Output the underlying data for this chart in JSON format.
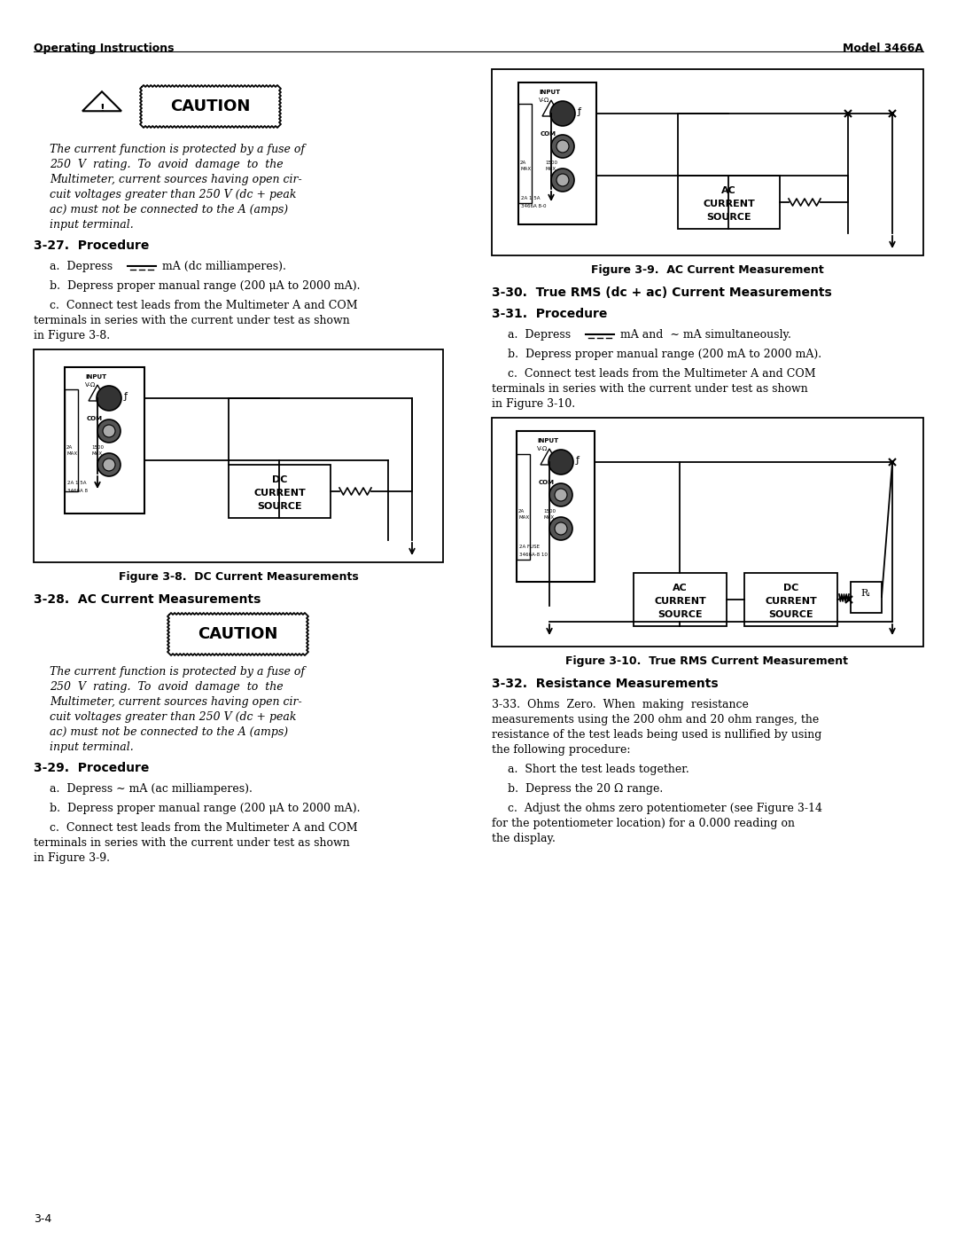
{
  "page_header_left": "Operating Instructions",
  "page_header_right": "Model 3466A",
  "page_footer": "3-4",
  "bg_color": "#ffffff",
  "caution_text_lines": [
    "The current function is protected by a fuse of",
    "250  V  rating.  To  avoid  damage  to  the",
    "Multimeter, current sources having open cir-",
    "cuit voltages greater than 250 V (dc + peak",
    "ac) must not be connected to the A (amps)",
    "input terminal."
  ],
  "section_327_title": "3-27.  Procedure",
  "step_a1_pre": "a.  Depress  ",
  "step_a1_post": " mA (dc milliamperes).",
  "step_b1": "b.  Depress proper manual range (200 μA to 2000 mA).",
  "step_c1_lines": [
    "c.  Connect test leads from the Multimeter A and COM",
    "terminals in series with the current under test as shown",
    "in Figure 3-8."
  ],
  "fig38_caption": "Figure 3-8.  DC Current Measurements",
  "section_328_title": "3-28.  AC Current Measurements",
  "section_329_title": "3-29.  Procedure",
  "step_a2": "a.  Depress ∼ mA (ac milliamperes).",
  "step_b2": "b.  Depress proper manual range (200 μA to 2000 mA).",
  "step_c2_lines": [
    "c.  Connect test leads from the Multimeter A and COM",
    "terminals in series with the current under test as shown",
    "in Figure 3-9."
  ],
  "fig39_caption": "Figure 3-9.  AC Current Measurement",
  "section_330_title": "3-30.  True RMS (dc + ac) Current Measurements",
  "section_331_title": "3-31.  Procedure",
  "step_a3_pre": "a.  Depress  ",
  "step_a3_mid": " mA and  ∼ mA simultaneously.",
  "step_b3": "b.  Depress proper manual range (200 mA to 2000 mA).",
  "step_c3_lines": [
    "c.  Connect test leads from the Multimeter A and COM",
    "terminals in series with the current under test as shown",
    "in Figure 3-10."
  ],
  "fig310_caption": "Figure 3-10.  True RMS Current Measurement",
  "section_332_title": "3-32.  Resistance Measurements",
  "section_333_lines": [
    "3-33.  Ohms  Zero.  When  making  resistance",
    "measurements using the 200 ohm and 20 ohm ranges, the",
    "resistance of the test leads being used is nullified by using",
    "the following procedure:"
  ],
  "step_a4": "a.  Short the test leads together.",
  "step_b4": "b.  Depress the 20 Ω range.",
  "step_c4_lines": [
    "c.  Adjust the ohms zero potentiometer (see Figure 3-14",
    "for the potentiometer location) for a 0.000 reading on",
    "the display."
  ]
}
